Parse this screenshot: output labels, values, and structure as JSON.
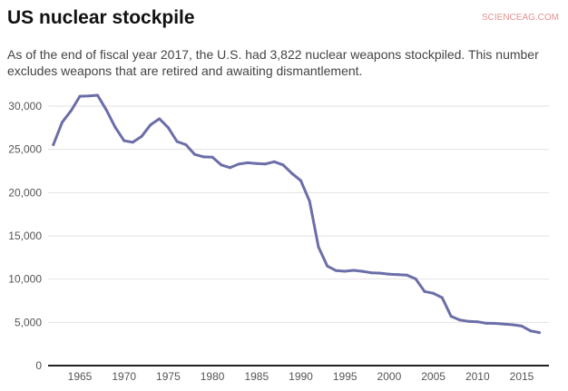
{
  "chart_data": {
    "type": "line",
    "title": "US nuclear stockpile",
    "subtitle": "As of the end of fiscal year 2017, the U.S. had 3,822 nuclear weapons stockpiled. This number excludes weapons that are retired and awaiting dismantlement.",
    "xlabel": "",
    "ylabel": "",
    "xlim": [
      1962,
      2017
    ],
    "ylim": [
      0,
      30000
    ],
    "x_ticks": [
      1965,
      1970,
      1975,
      1980,
      1985,
      1990,
      1995,
      2000,
      2005,
      2010,
      2015
    ],
    "y_ticks": [
      0,
      5000,
      10000,
      15000,
      20000,
      25000,
      30000
    ],
    "y_tick_labels": [
      "0",
      "5,000",
      "10,000",
      "15,000",
      "20,000",
      "25,000",
      "30,000"
    ],
    "grid": "horizontal",
    "line_color": "#6b6ea8",
    "x": [
      1962,
      1963,
      1964,
      1965,
      1966,
      1967,
      1968,
      1969,
      1970,
      1971,
      1972,
      1973,
      1974,
      1975,
      1976,
      1977,
      1978,
      1979,
      1980,
      1981,
      1982,
      1983,
      1984,
      1985,
      1986,
      1987,
      1988,
      1989,
      1990,
      1991,
      1992,
      1993,
      1994,
      1995,
      1996,
      1997,
      1998,
      1999,
      2000,
      2001,
      2002,
      2003,
      2004,
      2005,
      2006,
      2007,
      2008,
      2009,
      2010,
      2011,
      2012,
      2013,
      2014,
      2015,
      2016,
      2017
    ],
    "values": [
      25540,
      28133,
      29463,
      31139,
      31175,
      31255,
      29561,
      27552,
      26008,
      25830,
      26516,
      27835,
      28537,
      27519,
      25914,
      25542,
      24418,
      24138,
      24104,
      23208,
      22886,
      23305,
      23459,
      23368,
      23317,
      23575,
      23205,
      22217,
      21392,
      19008,
      13708,
      11511,
      10979,
      10904,
      11011,
      10903,
      10732,
      10685,
      10577,
      10526,
      10457,
      10027,
      8570,
      8360,
      7853,
      5709,
      5273,
      5113,
      5066,
      4897,
      4881,
      4804,
      4717,
      4571,
      4018,
      3822
    ]
  },
  "watermark": "SCIENCEAG.COM"
}
